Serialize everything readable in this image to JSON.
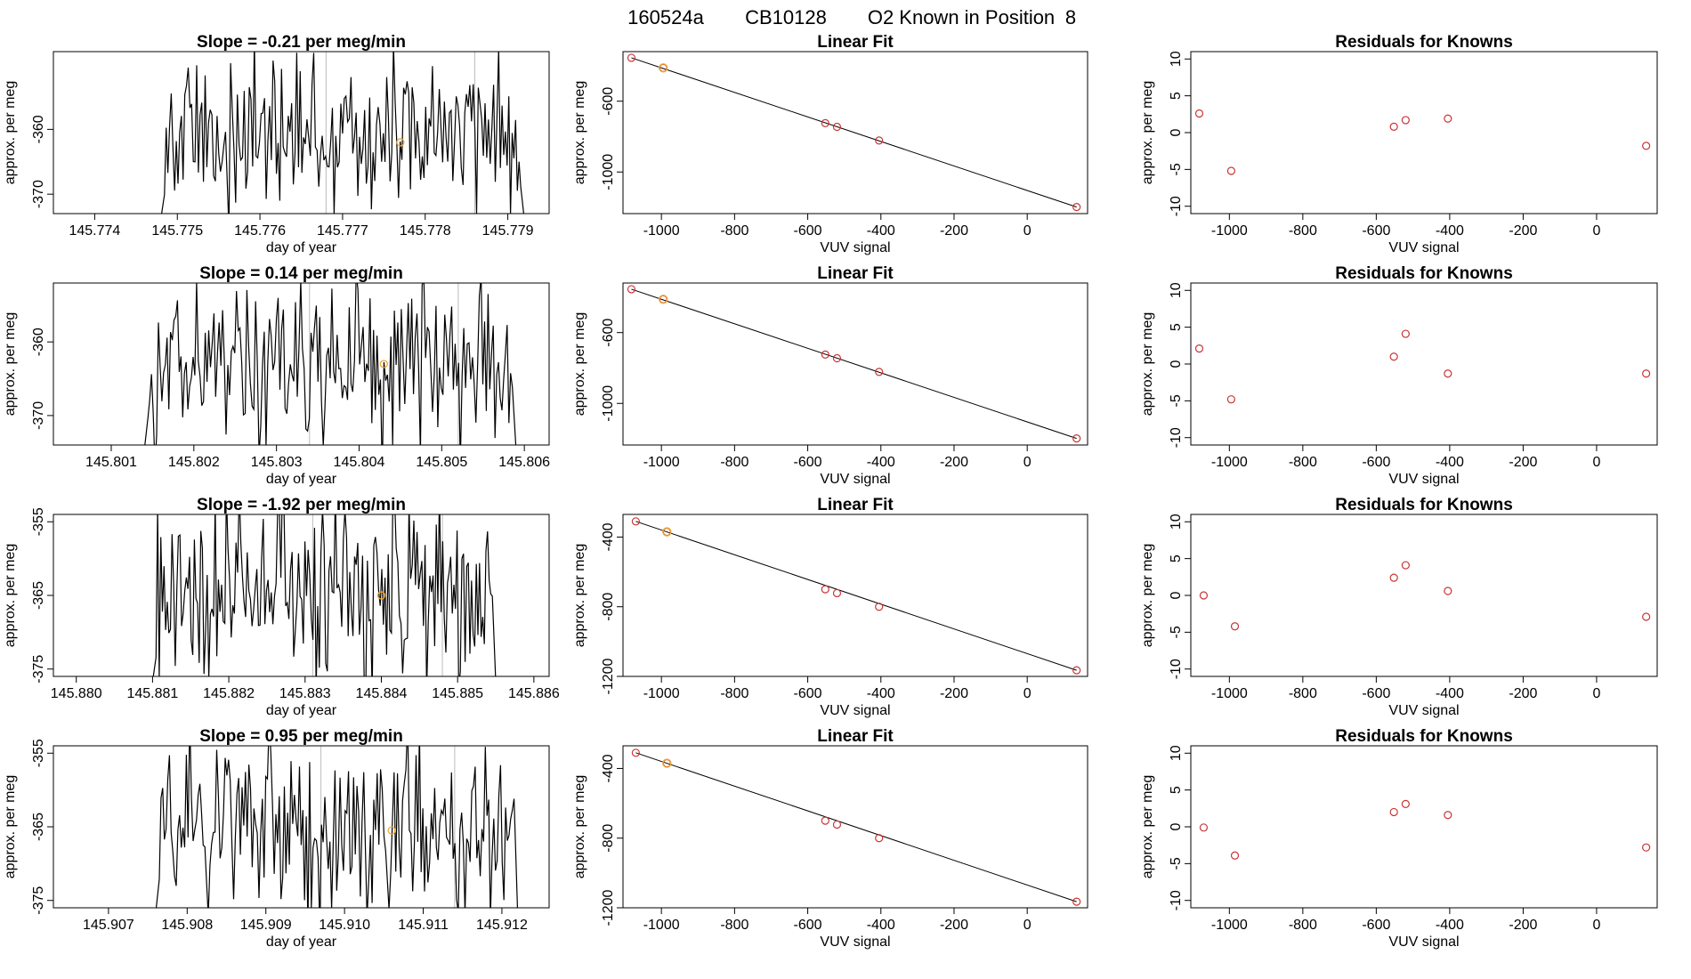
{
  "figure_title": {
    "run": "160524a",
    "tank": "CB10128",
    "label": "O2 Known in Position",
    "position": "8"
  },
  "colors": {
    "trace": "#000000",
    "marker": "#f0a830",
    "residual": "#cc3333",
    "vline": "#bbbbbb",
    "fit": "#000000"
  },
  "chart_data": [
    {
      "type": "line",
      "panel": "timeseries",
      "row": 1,
      "title": "Slope =  -0.21  per meg/min",
      "xlabel": "day of year",
      "ylabel": "approx. per meg",
      "xlim": [
        145.7735,
        145.7795
      ],
      "ylim": [
        -373,
        -348
      ],
      "xticks": [
        145.774,
        145.775,
        145.776,
        145.777,
        145.778,
        145.779
      ],
      "xtick_labels": [
        "145.774",
        "145.775",
        "145.776",
        "145.777",
        "145.778",
        "145.779"
      ],
      "yticks": [
        -360,
        -370
      ],
      "ytick_labels": [
        "-360",
        "-370"
      ],
      "x_start": 145.7748,
      "x_end": 145.7792,
      "vlines": [
        145.7768,
        145.7786
      ],
      "y_mid": -361,
      "y_amp": 6,
      "marker": {
        "x": 145.7777,
        "y": -362
      }
    },
    {
      "type": "line",
      "panel": "timeseries",
      "row": 2,
      "title": "Slope =  0.14  per meg/min",
      "xlabel": "day of year",
      "ylabel": "approx. per meg",
      "xlim": [
        145.8003,
        145.8063
      ],
      "ylim": [
        -374,
        -352
      ],
      "xticks": [
        145.801,
        145.802,
        145.803,
        145.804,
        145.805,
        145.806
      ],
      "xtick_labels": [
        "145.801",
        "145.802",
        "145.803",
        "145.804",
        "145.805",
        "145.806"
      ],
      "yticks": [
        -360,
        -370
      ],
      "ytick_labels": [
        "-360",
        "-370"
      ],
      "x_start": 145.8014,
      "x_end": 145.8059,
      "vlines": [
        145.8034,
        145.8052
      ],
      "y_mid": -362.5,
      "y_amp": 5.5,
      "marker": {
        "x": 145.8043,
        "y": -363
      }
    },
    {
      "type": "line",
      "panel": "timeseries",
      "row": 3,
      "title": "Slope =  -1.92  per meg/min",
      "xlabel": "day of year",
      "ylabel": "approx. per meg",
      "xlim": [
        145.8797,
        145.8862
      ],
      "ylim": [
        -376,
        -354
      ],
      "xticks": [
        145.88,
        145.881,
        145.882,
        145.883,
        145.884,
        145.885,
        145.886
      ],
      "xtick_labels": [
        "145.880",
        "145.881",
        "145.882",
        "145.883",
        "145.884",
        "145.885",
        "145.886"
      ],
      "yticks": [
        -355,
        -365,
        -375
      ],
      "ytick_labels": [
        "-355",
        "-365",
        "-375"
      ],
      "x_start": 145.881,
      "x_end": 145.8855,
      "vlines": [
        145.8831,
        145.8848
      ],
      "y_mid": -365,
      "y_amp": 6.5,
      "marker": {
        "x": 145.884,
        "y": -365
      }
    },
    {
      "type": "line",
      "panel": "timeseries",
      "row": 4,
      "title": "Slope =  0.95  per meg/min",
      "xlabel": "day of year",
      "ylabel": "approx. per meg",
      "xlim": [
        145.9063,
        145.9126
      ],
      "ylim": [
        -376,
        -354
      ],
      "xticks": [
        145.907,
        145.908,
        145.909,
        145.91,
        145.911,
        145.912
      ],
      "xtick_labels": [
        "145.907",
        "145.908",
        "145.909",
        "145.910",
        "145.911",
        "145.912"
      ],
      "yticks": [
        -355,
        -365,
        -375
      ],
      "ytick_labels": [
        "-355",
        "-365",
        "-375"
      ],
      "x_start": 145.9076,
      "x_end": 145.9122,
      "vlines": [
        145.9097,
        145.9114
      ],
      "y_mid": -365,
      "y_amp": 6,
      "marker": {
        "x": 145.9106,
        "y": -365.5
      }
    },
    {
      "type": "scatter",
      "panel": "fit",
      "row": 1,
      "title": "Linear Fit",
      "xlabel": "VUV signal",
      "ylabel": "approx. per meg",
      "xlim": [
        -1105,
        165
      ],
      "ylim": [
        -1235,
        -320
      ],
      "xticks": [
        -1000,
        -800,
        -600,
        -400,
        -200,
        0
      ],
      "xtick_labels": [
        "-1000",
        "-800",
        "-600",
        "-400",
        "-200",
        "0"
      ],
      "yticks": [
        -600,
        -1000
      ],
      "ytick_labels": [
        "-600",
        "-1000"
      ],
      "points": [
        [
          -1082,
          -355
        ],
        [
          -995,
          -412
        ],
        [
          -552,
          -724
        ],
        [
          -520,
          -745
        ],
        [
          -405,
          -822
        ],
        [
          135,
          -1198
        ]
      ],
      "highlight_index": 1,
      "fit_line": [
        [
          -1082,
          -355
        ],
        [
          135,
          -1198
        ]
      ]
    },
    {
      "type": "scatter",
      "panel": "fit",
      "row": 2,
      "title": "Linear Fit",
      "xlabel": "VUV signal",
      "ylabel": "approx. per meg",
      "xlim": [
        -1105,
        165
      ],
      "ylim": [
        -1235,
        -320
      ],
      "xticks": [
        -1000,
        -800,
        -600,
        -400,
        -200,
        0
      ],
      "xtick_labels": [
        "-1000",
        "-800",
        "-600",
        "-400",
        "-200",
        "0"
      ],
      "yticks": [
        -600,
        -1000
      ],
      "ytick_labels": [
        "-600",
        "-1000"
      ],
      "points": [
        [
          -1082,
          -355
        ],
        [
          -995,
          -412
        ],
        [
          -552,
          -724
        ],
        [
          -520,
          -745
        ],
        [
          -405,
          -822
        ],
        [
          135,
          -1198
        ]
      ],
      "highlight_index": 1,
      "fit_line": [
        [
          -1082,
          -355
        ],
        [
          135,
          -1198
        ]
      ]
    },
    {
      "type": "scatter",
      "panel": "fit",
      "row": 3,
      "title": "Linear Fit",
      "xlabel": "VUV signal",
      "ylabel": "approx. per meg",
      "xlim": [
        -1105,
        165
      ],
      "ylim": [
        -1200,
        -270
      ],
      "xticks": [
        -1000,
        -800,
        -600,
        -400,
        -200,
        0
      ],
      "xtick_labels": [
        "-1000",
        "-800",
        "-600",
        "-400",
        "-200",
        "0"
      ],
      "yticks": [
        -400,
        -800,
        -1200
      ],
      "ytick_labels": [
        "-400",
        "-800",
        "-1200"
      ],
      "points": [
        [
          -1070,
          -310
        ],
        [
          -985,
          -370
        ],
        [
          -552,
          -700
        ],
        [
          -520,
          -722
        ],
        [
          -405,
          -800
        ],
        [
          135,
          -1165
        ]
      ],
      "highlight_index": 1,
      "fit_line": [
        [
          -1070,
          -310
        ],
        [
          135,
          -1165
        ]
      ]
    },
    {
      "type": "scatter",
      "panel": "fit",
      "row": 4,
      "title": "Linear Fit",
      "xlabel": "VUV signal",
      "ylabel": "approx. per meg",
      "xlim": [
        -1105,
        165
      ],
      "ylim": [
        -1200,
        -270
      ],
      "xticks": [
        -1000,
        -800,
        -600,
        -400,
        -200,
        0
      ],
      "xtick_labels": [
        "-1000",
        "-800",
        "-600",
        "-400",
        "-200",
        "0"
      ],
      "yticks": [
        -400,
        -800,
        -1200
      ],
      "ytick_labels": [
        "-400",
        "-800",
        "-1200"
      ],
      "points": [
        [
          -1070,
          -310
        ],
        [
          -985,
          -370
        ],
        [
          -552,
          -700
        ],
        [
          -520,
          -722
        ],
        [
          -405,
          -800
        ],
        [
          135,
          -1165
        ]
      ],
      "highlight_index": 1,
      "fit_line": [
        [
          -1070,
          -310
        ],
        [
          135,
          -1165
        ]
      ]
    },
    {
      "type": "scatter",
      "panel": "residuals",
      "row": 1,
      "title": "Residuals for Knowns",
      "xlabel": "VUV signal",
      "ylabel": "approx. per meg",
      "xlim": [
        -1105,
        165
      ],
      "ylim": [
        -11,
        11
      ],
      "xticks": [
        -1000,
        -800,
        -600,
        -400,
        -200,
        0
      ],
      "xtick_labels": [
        "-1000",
        "-800",
        "-600",
        "-400",
        "-200",
        "0"
      ],
      "yticks": [
        10,
        5,
        0,
        -5,
        -10
      ],
      "ytick_labels": [
        "10",
        "5",
        "0",
        "-5",
        "-10"
      ],
      "points": [
        [
          -1082,
          2.6
        ],
        [
          -995,
          -5.2
        ],
        [
          -552,
          0.8
        ],
        [
          -520,
          1.7
        ],
        [
          -405,
          1.9
        ],
        [
          135,
          -1.8
        ]
      ]
    },
    {
      "type": "scatter",
      "panel": "residuals",
      "row": 2,
      "title": "Residuals for Knowns",
      "xlabel": "VUV signal",
      "ylabel": "approx. per meg",
      "xlim": [
        -1105,
        165
      ],
      "ylim": [
        -11,
        11
      ],
      "xticks": [
        -1000,
        -800,
        -600,
        -400,
        -200,
        0
      ],
      "xtick_labels": [
        "-1000",
        "-800",
        "-600",
        "-400",
        "-200",
        "0"
      ],
      "yticks": [
        10,
        5,
        0,
        -5,
        -10
      ],
      "ytick_labels": [
        "10",
        "5",
        "0",
        "-5",
        "-10"
      ],
      "points": [
        [
          -1082,
          2.1
        ],
        [
          -995,
          -4.8
        ],
        [
          -552,
          1.0
        ],
        [
          -520,
          4.1
        ],
        [
          -405,
          -1.3
        ],
        [
          135,
          -1.3
        ]
      ]
    },
    {
      "type": "scatter",
      "panel": "residuals",
      "row": 3,
      "title": "Residuals for Knowns",
      "xlabel": "VUV signal",
      "ylabel": "approx. per meg",
      "xlim": [
        -1105,
        165
      ],
      "ylim": [
        -11,
        11
      ],
      "xticks": [
        -1000,
        -800,
        -600,
        -400,
        -200,
        0
      ],
      "xtick_labels": [
        "-1000",
        "-800",
        "-600",
        "-400",
        "-200",
        "0"
      ],
      "yticks": [
        10,
        5,
        0,
        -5,
        -10
      ],
      "ytick_labels": [
        "10",
        "5",
        "0",
        "-5",
        "-10"
      ],
      "points": [
        [
          -1070,
          0.0
        ],
        [
          -985,
          -4.2
        ],
        [
          -552,
          2.4
        ],
        [
          -520,
          4.1
        ],
        [
          -405,
          0.6
        ],
        [
          135,
          -2.9
        ]
      ]
    },
    {
      "type": "scatter",
      "panel": "residuals",
      "row": 4,
      "title": "Residuals for Knowns",
      "xlabel": "VUV signal",
      "ylabel": "approx. per meg",
      "xlim": [
        -1105,
        165
      ],
      "ylim": [
        -11,
        11
      ],
      "xticks": [
        -1000,
        -800,
        -600,
        -400,
        -200,
        0
      ],
      "xtick_labels": [
        "-1000",
        "-800",
        "-600",
        "-400",
        "-200",
        "0"
      ],
      "yticks": [
        10,
        5,
        0,
        -5,
        -10
      ],
      "ytick_labels": [
        "10",
        "5",
        "0",
        "-5",
        "-10"
      ],
      "points": [
        [
          -1070,
          -0.1
        ],
        [
          -985,
          -3.9
        ],
        [
          -552,
          2.0
        ],
        [
          -520,
          3.1
        ],
        [
          -405,
          1.6
        ],
        [
          135,
          -2.8
        ]
      ]
    }
  ]
}
